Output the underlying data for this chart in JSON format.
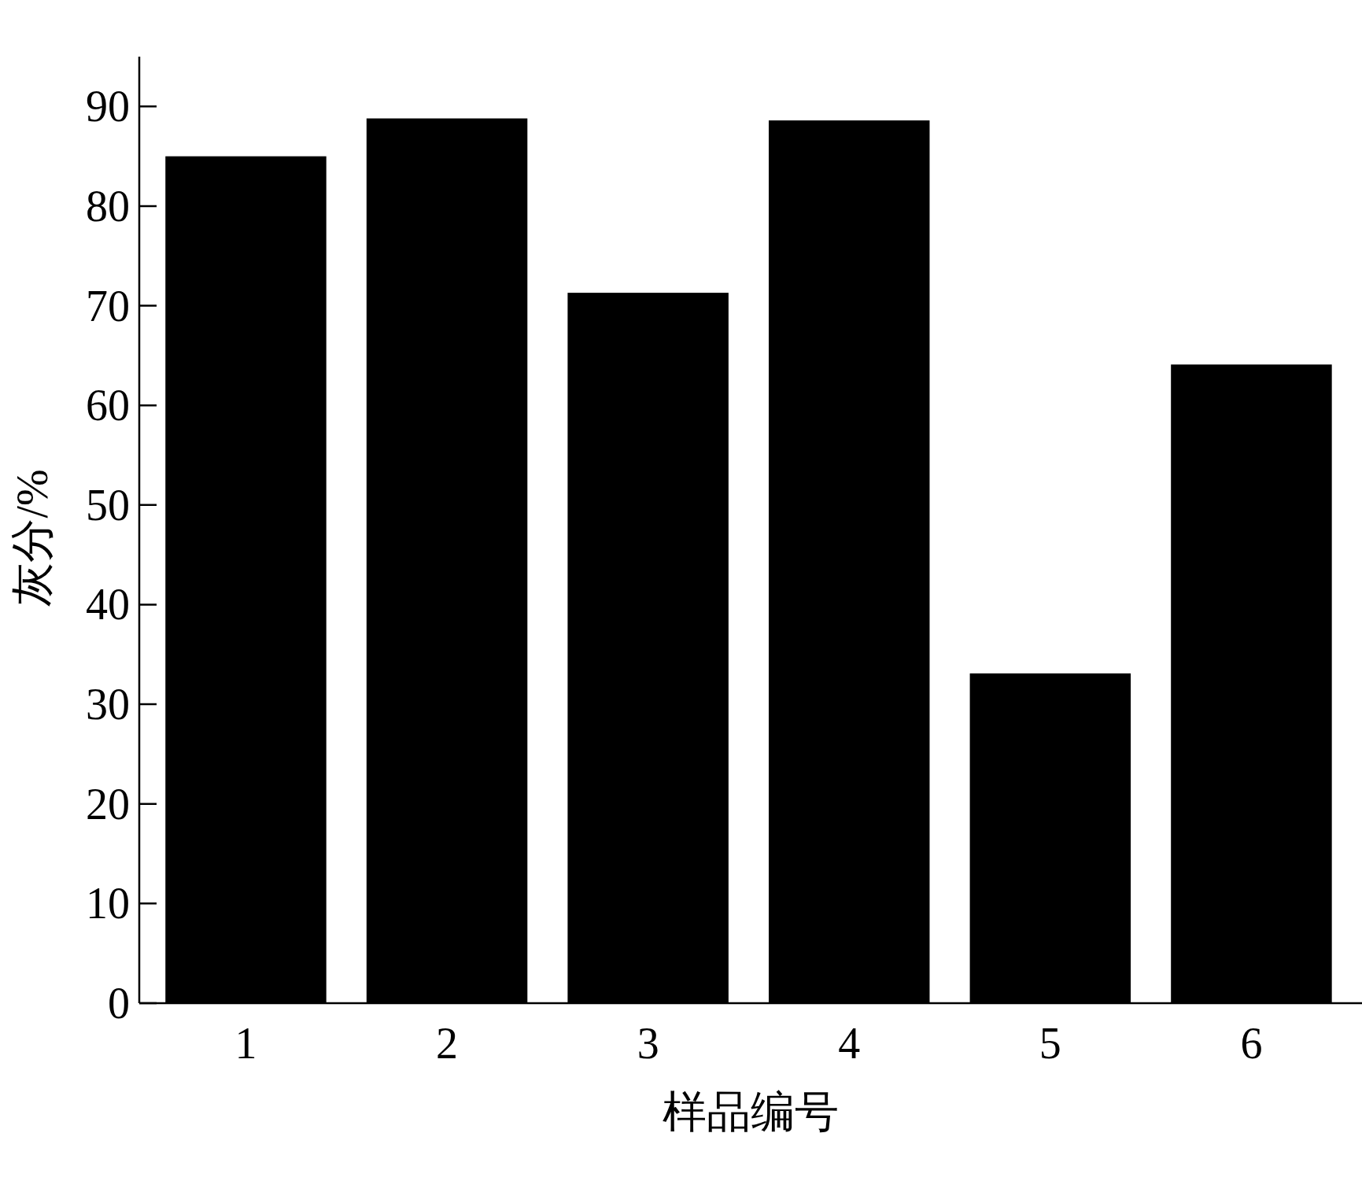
{
  "chart_data": {
    "type": "bar",
    "xlabel": "样品编号",
    "ylabel": "灰分/%",
    "categories": [
      "1",
      "2",
      "3",
      "4",
      "5",
      "6"
    ],
    "values": [
      85.0,
      88.8,
      71.3,
      88.6,
      33.1,
      64.1
    ],
    "color": "#000000",
    "ylim": [
      0,
      95
    ],
    "yticks": [
      0,
      10,
      20,
      30,
      40,
      50,
      60,
      70,
      80,
      90
    ]
  }
}
